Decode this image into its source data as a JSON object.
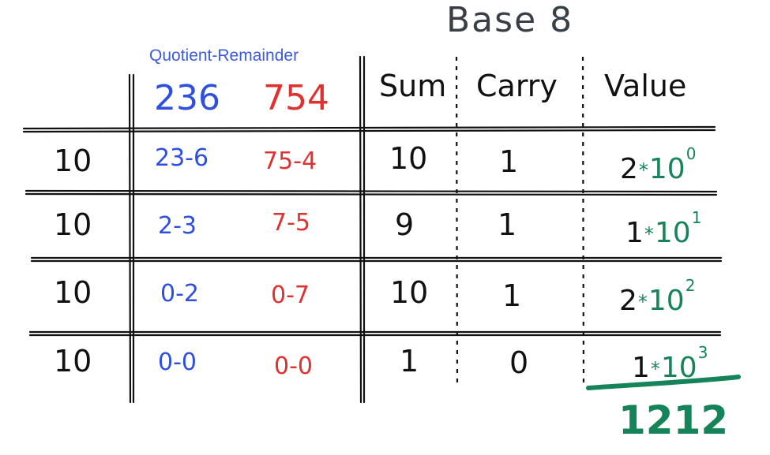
{
  "title": "Base 8",
  "quotient_remainder_label": "Quotient-Remainder",
  "operands": {
    "first": "236",
    "second": "754"
  },
  "columns": {
    "sum": "Sum",
    "carry": "Carry",
    "value": "Value"
  },
  "rows": [
    {
      "divisor": "10",
      "first_qr": "23-6",
      "second_qr": "75-4",
      "sum": "10",
      "carry": "1",
      "digit": "2",
      "base": "10",
      "exponent": "0"
    },
    {
      "divisor": "10",
      "first_qr": "2-3",
      "second_qr": "7-5",
      "sum": "9",
      "carry": "1",
      "digit": "1",
      "base": "10",
      "exponent": "1"
    },
    {
      "divisor": "10",
      "first_qr": "0-2",
      "second_qr": "0-7",
      "sum": "10",
      "carry": "1",
      "digit": "2",
      "base": "10",
      "exponent": "2"
    },
    {
      "divisor": "10",
      "first_qr": "0-0",
      "second_qr": "0-0",
      "sum": "1",
      "carry": "0",
      "digit": "1",
      "base": "10",
      "exponent": "3"
    }
  ],
  "multiply_symbol": "*",
  "result": "1212",
  "colors": {
    "blue": "#2f4fe0",
    "red": "#e03131",
    "green": "#16845a",
    "ink": "#111111",
    "title": "#3a3f45"
  }
}
